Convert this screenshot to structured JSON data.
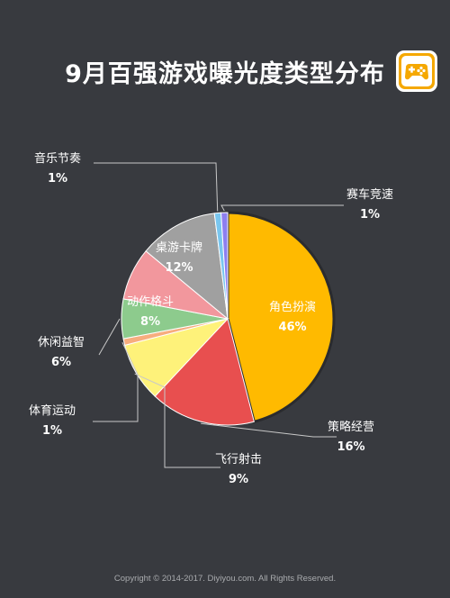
{
  "header": {
    "title": "9月百强游戏曝光度类型分布",
    "logo_icon": "gamepad-icon"
  },
  "footer": {
    "copyright": "Copyright © 2014-2017. Diyiyou.com. All Rights Reserved."
  },
  "chart_data": {
    "type": "pie",
    "title": "9月百强游戏曝光度类型分布",
    "unit": "%",
    "slices": [
      {
        "label": "角色扮演",
        "value": 46,
        "color": "#ffba00",
        "display": "46%"
      },
      {
        "label": "策略经营",
        "value": 16,
        "color": "#e84f4f",
        "display": "16%"
      },
      {
        "label": "飞行射击",
        "value": 9,
        "color": "#fef27a",
        "display": "9%"
      },
      {
        "label": "体育运动",
        "value": 1,
        "color": "#f7ad7e",
        "display": "1%"
      },
      {
        "label": "休闲益智",
        "value": 6,
        "color": "#8dcb8d",
        "display": "6%"
      },
      {
        "label": "动作格斗",
        "value": 8,
        "color": "#f2979d",
        "display": "8%"
      },
      {
        "label": "桌游卡牌",
        "value": 12,
        "color": "#a0a0a0",
        "display": "12%"
      },
      {
        "label": "音乐节奏",
        "value": 1,
        "color": "#79c6ef",
        "display": "1%"
      },
      {
        "label": "赛车竞速",
        "value": 1,
        "color": "#8d7ff0",
        "display": "1%"
      }
    ]
  }
}
